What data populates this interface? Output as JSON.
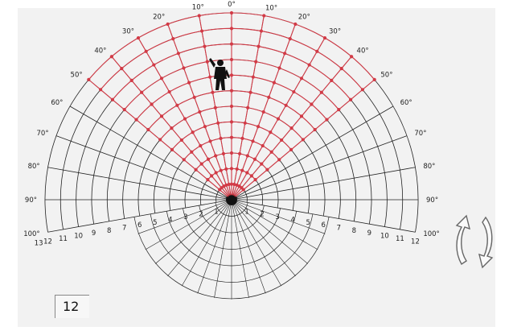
{
  "diagram": {
    "angle_labels_left": [
      "20°",
      "30°",
      "40°",
      "50°",
      "60°",
      "70°",
      "80°",
      "90°",
      "100°"
    ],
    "angle_labels_right": [
      "10°",
      "20°",
      "30°",
      "40°",
      "50°",
      "60°",
      "70°",
      "80°",
      "90°",
      "100°"
    ],
    "angle_labels_top": [
      "10°",
      "0°"
    ],
    "ring_numbers_left": [
      "13",
      "12",
      "11",
      "10",
      "9",
      "8",
      "7",
      "6",
      "5",
      "4",
      "3",
      "2",
      "1"
    ],
    "ring_numbers_right": [
      "1",
      "2",
      "3",
      "4",
      "5",
      "6",
      "7",
      "8",
      "9",
      "10",
      "11",
      "12"
    ],
    "colors": {
      "grid": "#222222",
      "highlight": "#d23a46",
      "figure": "#111111"
    },
    "icons": [
      "person-figure-icon",
      "rotate-arrows-icon"
    ]
  },
  "page": {
    "number": "12"
  }
}
